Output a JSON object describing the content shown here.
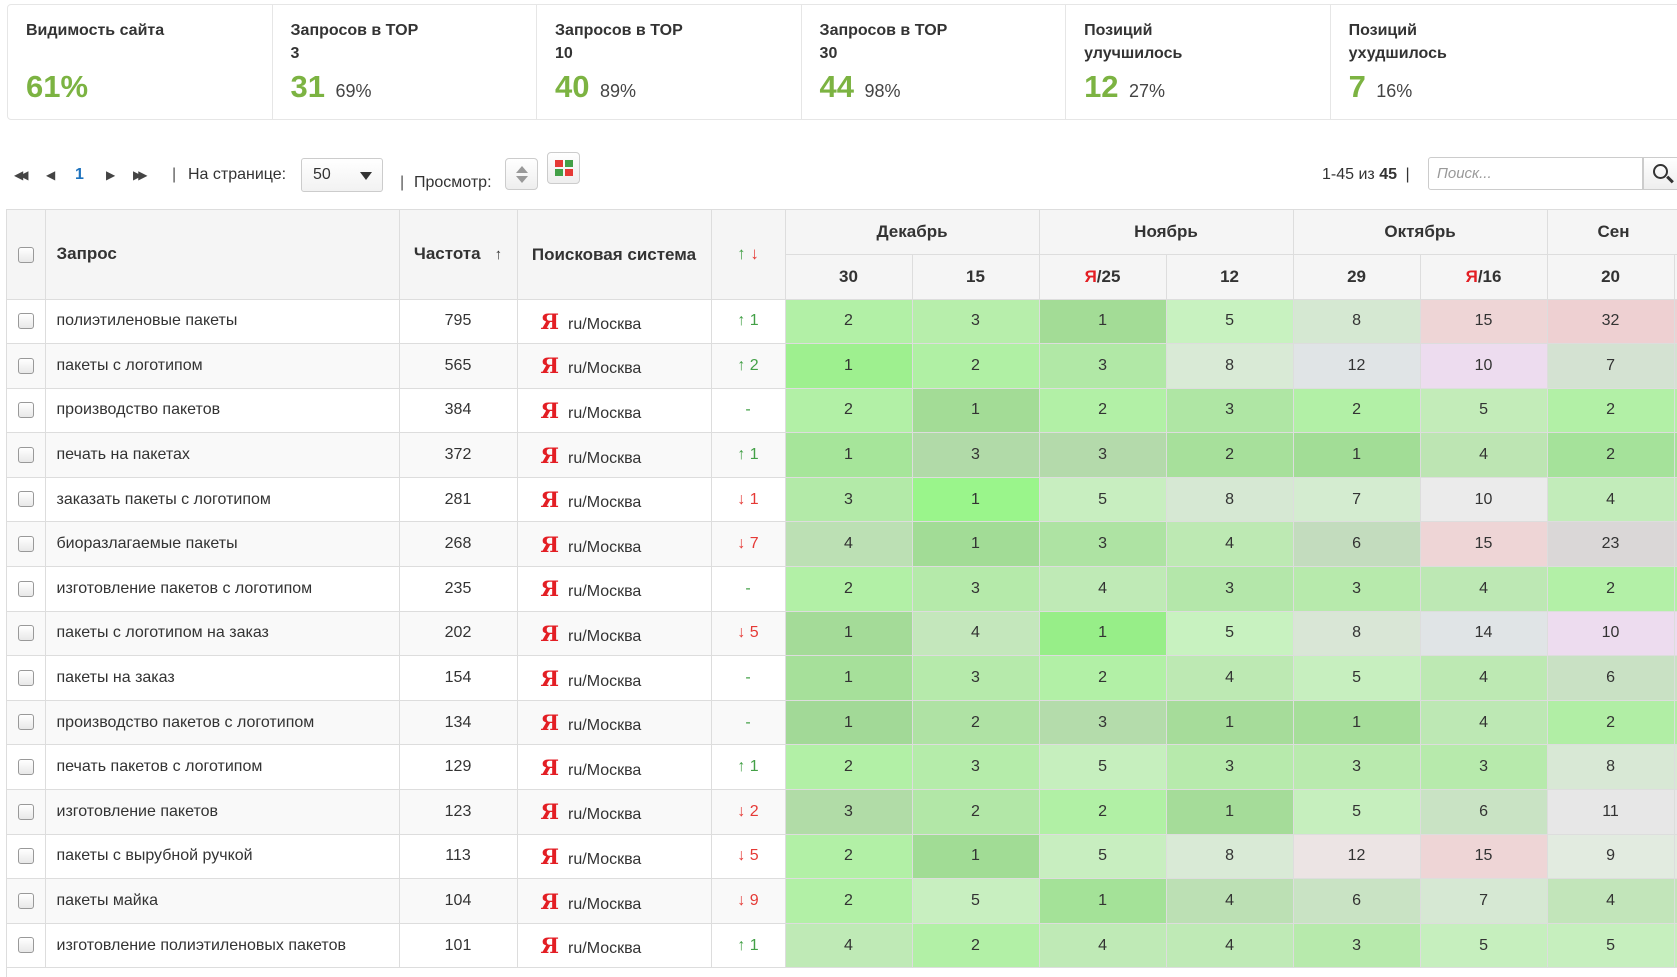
{
  "stats": [
    {
      "label": "Видимость сайта",
      "value": "61%",
      "pct": ""
    },
    {
      "label": "Запросов в TOP 3",
      "value": "31",
      "pct": "69%"
    },
    {
      "label": "Запросов в TOP 10",
      "value": "40",
      "pct": "89%"
    },
    {
      "label": "Запросов в TOP 30",
      "value": "44",
      "pct": "98%"
    },
    {
      "label": "Позиций улучшилось",
      "value": "12",
      "pct": "27%"
    },
    {
      "label": "Позиций ухудшилось",
      "value": "7",
      "pct": "16%"
    }
  ],
  "toolbar": {
    "current_page": "1",
    "per_page_label": "На странице:",
    "per_page_value": "50",
    "view_label": "Просмотр:",
    "range_text": "1-45 из",
    "total": "45",
    "search_placeholder": "Поиск..."
  },
  "table": {
    "headers": {
      "query": "Запрос",
      "frequency": "Частота",
      "frequency_sort": "↑",
      "engine": "Поисковая система",
      "change": "↑↓"
    },
    "months": [
      "Декабрь",
      "Ноябрь",
      "Октябрь",
      "Сен"
    ],
    "dates": [
      {
        "prefix": "",
        "day": "30"
      },
      {
        "prefix": "",
        "day": "15"
      },
      {
        "prefix": "Я",
        "day": "/25"
      },
      {
        "prefix": "",
        "day": "12"
      },
      {
        "prefix": "",
        "day": "29"
      },
      {
        "prefix": "Я",
        "day": "/16"
      },
      {
        "prefix": "",
        "day": "20"
      }
    ],
    "rows": [
      {
        "query": "полиэтиленовые пакеты",
        "freq": "795",
        "engine": "ru/Москва",
        "dir": "up",
        "chg": "↑ 1",
        "pos": [
          "2",
          "3",
          "1",
          "5",
          "8",
          "15",
          "32"
        ],
        "colors": [
          "#b2f0a6",
          "#b7eeab",
          "#a3dc96",
          "#c8f2c0",
          "#d5e8d2",
          "#eed5d6",
          "#eed0d2"
        ]
      },
      {
        "query": "пакеты с логотипом",
        "freq": "565",
        "engine": "ru/Москва",
        "dir": "up",
        "chg": "↑ 2",
        "pos": [
          "1",
          "2",
          "3",
          "8",
          "12",
          "10",
          "7"
        ],
        "colors": [
          "#9ef08f",
          "#b0f0a4",
          "#b1e8a6",
          "#d9ead6",
          "#e0e4e6",
          "#eddcef",
          "#d4e2d2"
        ]
      },
      {
        "query": "производство пакетов",
        "freq": "384",
        "engine": "ru/Москва",
        "dir": "same",
        "chg": "-",
        "pos": [
          "2",
          "1",
          "2",
          "3",
          "2",
          "5",
          "2"
        ],
        "colors": [
          "#b2f0a6",
          "#a3dc96",
          "#b2f0a6",
          "#afe6a4",
          "#b2f0a6",
          "#c3ecb9",
          "#b2f0a6"
        ]
      },
      {
        "query": "печать на пакетах",
        "freq": "372",
        "engine": "ru/Москва",
        "dir": "up",
        "chg": "↑ 1",
        "pos": [
          "1",
          "3",
          "3",
          "2",
          "1",
          "4",
          "2"
        ],
        "colors": [
          "#a6e59a",
          "#b1daa8",
          "#b4daab",
          "#a7e09b",
          "#a2dd96",
          "#bde5b3",
          "#a5e29a"
        ]
      },
      {
        "query": "заказать пакеты с логотипом",
        "freq": "281",
        "engine": "ru/Москва",
        "dir": "down",
        "chg": "↓ 1",
        "pos": [
          "3",
          "1",
          "5",
          "8",
          "7",
          "10",
          "4"
        ],
        "colors": [
          "#b3eaa8",
          "#9af58b",
          "#c8eec0",
          "#d6e8d3",
          "#d4ecd0",
          "#ebebeb",
          "#c2ecba"
        ]
      },
      {
        "query": "биоразлагаемые пакеты",
        "freq": "268",
        "engine": "ru/Москва",
        "dir": "down",
        "chg": "↓ 7",
        "pos": [
          "4",
          "1",
          "3",
          "4",
          "6",
          "15",
          "23"
        ],
        "colors": [
          "#bce0b4",
          "#a2dc96",
          "#aee3a3",
          "#bde9b3",
          "#c3dcbe",
          "#eed5d6",
          "#dad7d7"
        ]
      },
      {
        "query": "изготовление пакетов с логотипом",
        "freq": "235",
        "engine": "ru/Москва",
        "dir": "same",
        "chg": "-",
        "pos": [
          "2",
          "3",
          "4",
          "3",
          "3",
          "4",
          "2"
        ],
        "colors": [
          "#b2f0a6",
          "#b5eaaa",
          "#bfeab6",
          "#b4e7aa",
          "#b7eaac",
          "#bde8b4",
          "#b3f0a7"
        ]
      },
      {
        "query": "пакеты с логотипом на заказ",
        "freq": "202",
        "engine": "ru/Москва",
        "dir": "down",
        "chg": "↓ 5",
        "pos": [
          "1",
          "4",
          "1",
          "5",
          "8",
          "14",
          "10"
        ],
        "colors": [
          "#a4db98",
          "#c4e7bc",
          "#97ee88",
          "#c8f2c0",
          "#d9e6d6",
          "#e0e4e6",
          "#eddcef"
        ]
      },
      {
        "query": "пакеты на заказ",
        "freq": "154",
        "engine": "ru/Москва",
        "dir": "same",
        "chg": "-",
        "pos": [
          "1",
          "3",
          "2",
          "4",
          "5",
          "4",
          "6"
        ],
        "colors": [
          "#a6e09a",
          "#b6eaab",
          "#b2f0a6",
          "#bde9b3",
          "#c7efbf",
          "#bde9b3",
          "#c9e1c4"
        ]
      },
      {
        "query": "производство пакетов с логотипом",
        "freq": "134",
        "engine": "ru/Москва",
        "dir": "same",
        "chg": "-",
        "pos": [
          "1",
          "2",
          "3",
          "1",
          "1",
          "4",
          "2"
        ],
        "colors": [
          "#a2d997",
          "#afe2a4",
          "#b4dcab",
          "#a6dc9a",
          "#a6de9a",
          "#bde8b4",
          "#b1eea5"
        ]
      },
      {
        "query": "печать пакетов с логотипом",
        "freq": "129",
        "engine": "ru/Москва",
        "dir": "up",
        "chg": "↑ 1",
        "pos": [
          "2",
          "3",
          "5",
          "3",
          "3",
          "3",
          "8"
        ],
        "colors": [
          "#b2f0a6",
          "#b5ecaa",
          "#c6efbe",
          "#b7eaac",
          "#b9eaae",
          "#b7eaac",
          "#d8e8d5"
        ]
      },
      {
        "query": "изготовление пакетов",
        "freq": "123",
        "engine": "ru/Москва",
        "dir": "down",
        "chg": "↓ 2",
        "pos": [
          "3",
          "2",
          "2",
          "1",
          "5",
          "6",
          "11"
        ],
        "colors": [
          "#b1dca7",
          "#b2e7a7",
          "#b1f0a5",
          "#a5dc99",
          "#c6efbe",
          "#c9e3c4",
          "#e7e7e7"
        ]
      },
      {
        "query": "пакеты с вырубной ручкой",
        "freq": "113",
        "engine": "ru/Москва",
        "dir": "down",
        "chg": "↓ 5",
        "pos": [
          "2",
          "1",
          "5",
          "8",
          "12",
          "15",
          "9"
        ],
        "colors": [
          "#b2f0a6",
          "#a1dc95",
          "#c8eec0",
          "#d9ead6",
          "#ece4e4",
          "#eed5d6",
          "#e2ebe0"
        ]
      },
      {
        "query": "пакеты майка",
        "freq": "104",
        "engine": "ru/Москва",
        "dir": "down",
        "chg": "↓ 9",
        "pos": [
          "2",
          "5",
          "1",
          "4",
          "6",
          "7",
          "4"
        ],
        "colors": [
          "#b2f0a6",
          "#c8efc0",
          "#a4e298",
          "#bce0b4",
          "#c9e3c4",
          "#d6e8d3",
          "#c2e5ba"
        ]
      },
      {
        "query": "изготовление полиэтиленовых пакетов",
        "freq": "101",
        "engine": "ru/Москва",
        "dir": "up",
        "chg": "↑ 1",
        "pos": [
          "4",
          "2",
          "4",
          "4",
          "3",
          "5",
          "5"
        ],
        "colors": [
          "#bfeab6",
          "#b2f0a6",
          "#bfeab6",
          "#bfeab6",
          "#b7eaac",
          "#c6efbe",
          "#c6efbe"
        ]
      }
    ]
  }
}
